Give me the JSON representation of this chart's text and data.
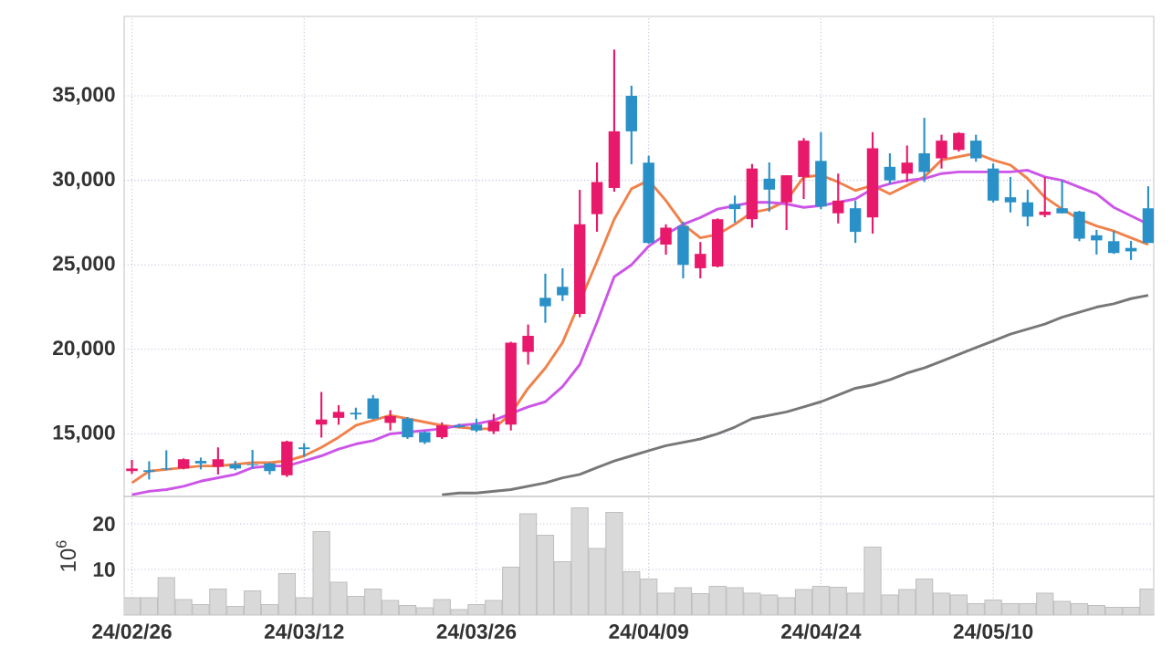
{
  "chart_data": [
    {
      "type": "candlestick",
      "tick_labels": "y",
      "grid": true,
      "categories": [
        null,
        null,
        null,
        null,
        null,
        null,
        null,
        null,
        null,
        null,
        null,
        null,
        null,
        null,
        null,
        null,
        null,
        null,
        null,
        null,
        null,
        null,
        null,
        null,
        null,
        null,
        null,
        null,
        null,
        null,
        null,
        null,
        null,
        null,
        null,
        null,
        null,
        null,
        null,
        null,
        null,
        null,
        null,
        null,
        null,
        null,
        null,
        null,
        null,
        null,
        null,
        null,
        null,
        null,
        null,
        null,
        null,
        null,
        null,
        null
      ],
      "ohlc": [
        [
          12800,
          13460,
          12630,
          12950
        ],
        [
          12850,
          13380,
          12300,
          12750
        ],
        [
          12950,
          14030,
          12850,
          12900
        ],
        [
          12950,
          13550,
          12900,
          13500
        ],
        [
          13400,
          13600,
          12900,
          13250
        ],
        [
          13050,
          14200,
          12600,
          13500
        ],
        [
          13200,
          13400,
          12850,
          12950
        ],
        [
          13200,
          14050,
          12950,
          13150
        ],
        [
          13250,
          13300,
          12600,
          12800
        ],
        [
          12550,
          14600,
          12450,
          14550
        ],
        [
          14200,
          14450,
          13650,
          14100
        ],
        [
          15550,
          17480,
          14780,
          15850
        ],
        [
          15950,
          16700,
          15540,
          16300
        ],
        [
          16250,
          16550,
          15850,
          16150
        ],
        [
          17100,
          17300,
          15850,
          15900
        ],
        [
          15650,
          16400,
          15200,
          16050
        ],
        [
          15900,
          16000,
          14700,
          14800
        ],
        [
          15100,
          15150,
          14400,
          14500
        ],
        [
          14800,
          15680,
          14700,
          15500
        ],
        [
          15500,
          15600,
          15350,
          15400
        ],
        [
          15550,
          15900,
          15100,
          15200
        ],
        [
          15150,
          16180,
          14990,
          15750
        ],
        [
          15550,
          20450,
          15200,
          20400
        ],
        [
          19850,
          21470,
          19100,
          20800
        ],
        [
          23050,
          24480,
          21570,
          22550
        ],
        [
          23700,
          24800,
          22860,
          23200
        ],
        [
          22100,
          29440,
          21900,
          27400
        ],
        [
          28000,
          31060,
          26960,
          29900
        ],
        [
          29550,
          37740,
          29330,
          32900
        ],
        [
          35000,
          35600,
          30950,
          32900
        ],
        [
          31050,
          31450,
          26250,
          26300
        ],
        [
          26200,
          27400,
          25600,
          27200
        ],
        [
          27300,
          27550,
          24200,
          25000
        ],
        [
          24800,
          26350,
          24200,
          25650
        ],
        [
          24900,
          27750,
          24850,
          27700
        ],
        [
          28600,
          29100,
          27500,
          28300
        ],
        [
          27700,
          30970,
          27200,
          30700
        ],
        [
          30100,
          31060,
          28150,
          29450
        ],
        [
          28700,
          30300,
          27060,
          30300
        ],
        [
          30200,
          32500,
          28900,
          32350
        ],
        [
          31150,
          32850,
          28300,
          28450
        ],
        [
          28050,
          30400,
          27450,
          28800
        ],
        [
          28350,
          28800,
          26300,
          26950
        ],
        [
          27800,
          32850,
          26850,
          31900
        ],
        [
          30800,
          31600,
          29770,
          30000
        ],
        [
          30400,
          32060,
          29900,
          31050
        ],
        [
          31600,
          33700,
          29900,
          30500
        ],
        [
          31300,
          32700,
          30700,
          32350
        ],
        [
          31800,
          32850,
          31700,
          32800
        ],
        [
          32350,
          32700,
          31100,
          31300
        ],
        [
          30700,
          31000,
          28700,
          28800
        ],
        [
          29000,
          30200,
          28100,
          28700
        ],
        [
          28700,
          29450,
          27280,
          27850
        ],
        [
          27950,
          30190,
          27820,
          28150
        ],
        [
          28350,
          29980,
          28040,
          28050
        ],
        [
          28150,
          28200,
          26400,
          26550
        ],
        [
          26750,
          27070,
          25610,
          26450
        ],
        [
          26400,
          27000,
          25650,
          25700
        ],
        [
          26000,
          26420,
          25290,
          25800
        ],
        [
          28350,
          29650,
          26300,
          26300
        ]
      ],
      "colors": [
        "#e8196b",
        "#2a90c8",
        "#2a90c8",
        "#e8196b",
        "#2a90c8",
        "#e8196b",
        "#2a90c8",
        "#2a90c8",
        "#2a90c8",
        "#e8196b",
        "#2a90c8",
        "#e8196b",
        "#e8196b",
        "#2a90c8",
        "#2a90c8",
        "#e8196b",
        "#2a90c8",
        "#2a90c8",
        "#e8196b",
        "#2a90c8",
        "#2a90c8",
        "#e8196b",
        "#e8196b",
        "#e8196b",
        "#2a90c8",
        "#2a90c8",
        "#e8196b",
        "#e8196b",
        "#e8196b",
        "#2a90c8",
        "#2a90c8",
        "#e8196b",
        "#2a90c8",
        "#e8196b",
        "#e8196b",
        "#2a90c8",
        "#e8196b",
        "#2a90c8",
        "#e8196b",
        "#e8196b",
        "#2a90c8",
        "#e8196b",
        "#2a90c8",
        "#e8196b",
        "#2a90c8",
        "#e8196b",
        "#2a90c8",
        "#e8196b",
        "#e8196b",
        "#2a90c8",
        "#2a90c8",
        "#2a90c8",
        "#2a90c8",
        "#e8196b",
        "#2a90c8",
        "#2a90c8",
        "#2a90c8",
        "#2a90c8",
        "#2a90c8",
        "#2a90c8"
      ],
      "series": [
        {
          "type": "line",
          "color": "#f0814a",
          "values": [
            12100,
            12800,
            12900,
            13000,
            13100,
            13100,
            13200,
            13300,
            13300,
            13400,
            13700,
            14200,
            14800,
            15500,
            15800,
            16100,
            15900,
            15700,
            15500,
            15400,
            15300,
            15300,
            16200,
            17700,
            18900,
            20400,
            null,
            25200,
            27700,
            29500,
            30000,
            28800,
            27400,
            26600,
            26800,
            27400,
            28100,
            28300,
            28800,
            30200,
            30300,
            29900,
            29400,
            29700,
            29200,
            29700,
            30200,
            31200,
            31400,
            31600,
            31200,
            30900,
            30100,
            29000,
            28300,
            27700,
            27300,
            27000,
            26600,
            26200
          ]
        },
        {
          "type": "line",
          "color": "#cc55e8",
          "values": [
            11400,
            11600,
            11700,
            11900,
            12200,
            12400,
            12600,
            13000,
            13100,
            13100,
            13400,
            13700,
            14100,
            14400,
            14600,
            15000,
            15100,
            15200,
            15300,
            15500,
            15600,
            15800,
            16200,
            16600,
            16900,
            17800,
            19100,
            21600,
            24300,
            25000,
            26100,
            26800,
            27400,
            27800,
            28300,
            28500,
            28700,
            28700,
            28600,
            28400,
            28500,
            28700,
            28900,
            29500,
            29800,
            30000,
            30100,
            30400,
            30500,
            30500,
            30500,
            30500,
            30600,
            30200,
            30000,
            29600,
            29200,
            28400,
            27900,
            27400
          ]
        },
        {
          "type": "line",
          "color": "#777777",
          "values": [
            null,
            null,
            null,
            null,
            null,
            null,
            null,
            null,
            null,
            null,
            null,
            null,
            null,
            null,
            null,
            null,
            null,
            null,
            11400,
            11500,
            11500,
            11600,
            11700,
            11900,
            12100,
            12400,
            12600,
            13000,
            13400,
            13700,
            14000,
            14300,
            14500,
            14700,
            15000,
            15400,
            15900,
            16100,
            16300,
            16600,
            16900,
            17300,
            17700,
            17900,
            18200,
            18600,
            18900,
            19300,
            19700,
            20100,
            20500,
            20900,
            21200,
            21500,
            21900,
            22200,
            22500,
            22700,
            23000,
            23200
          ]
        }
      ],
      "ylim": [
        11300,
        39700
      ],
      "yticks": [
        {
          "value": 15000,
          "label": "15,000"
        },
        {
          "value": 20000,
          "label": "20,000"
        },
        {
          "value": 25000,
          "label": "25,000"
        },
        {
          "value": 30000,
          "label": "30,000"
        },
        {
          "value": 35000,
          "label": "35,000"
        }
      ]
    },
    {
      "type": "bar",
      "grid": true,
      "ylabel": "10$^{6}$",
      "color": "#d9d9d9",
      "categories": [
        "24/02/26",
        null,
        null,
        null,
        null,
        null,
        null,
        null,
        null,
        null,
        "24/03/12",
        null,
        null,
        null,
        null,
        null,
        null,
        null,
        null,
        null,
        "24/03/26",
        null,
        null,
        null,
        null,
        null,
        null,
        null,
        null,
        null,
        "24/04/09",
        null,
        null,
        null,
        null,
        null,
        null,
        null,
        null,
        null,
        "24/04/24",
        null,
        null,
        null,
        null,
        null,
        null,
        null,
        null,
        null,
        "24/05/10",
        null,
        null,
        null,
        null,
        null,
        null,
        null,
        null,
        null
      ],
      "values": [
        3.8,
        3.8,
        8.2,
        3.4,
        2.3,
        5.7,
        1.9,
        5.3,
        2.3,
        9.1,
        3.8,
        18.3,
        7.2,
        4.1,
        5.7,
        3.2,
        2.1,
        1.6,
        3.4,
        1.2,
        2.3,
        3.2,
        10.5,
        22.2,
        17.5,
        11.7,
        23.5,
        14.6,
        22.5,
        9.5,
        7.9,
        4.8,
        6.0,
        4.7,
        6.3,
        6.0,
        4.8,
        4.4,
        3.8,
        5.6,
        6.3,
        6.1,
        4.8,
        14.9,
        4.4,
        5.6,
        7.9,
        4.8,
        4.4,
        2.5,
        3.3,
        2.5,
        2.5,
        4.8,
        3.0,
        2.5,
        2.1,
        1.7,
        1.7,
        5.7
      ],
      "ylim": [
        0,
        26
      ],
      "yticks": [
        10,
        20
      ]
    }
  ]
}
